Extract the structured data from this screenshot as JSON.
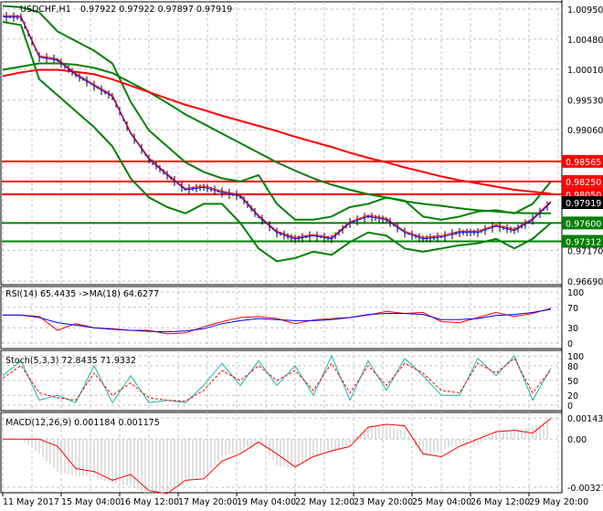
{
  "header": {
    "symbol": "USDCHF,H1",
    "ohlc": "0.97922 0.97922 0.97897 0.97919"
  },
  "colors": {
    "bull_level": "#008000",
    "bear_level": "#ff0000",
    "ma_slow": "#ff0000",
    "ma_green": "#008000",
    "rsi": "#ff0000",
    "rsi_ma": "#0000ff",
    "stoch_main": "#20b2aa",
    "stoch_signal": "#ff0000",
    "macd_hist": "#c0c0c0",
    "macd_signal": "#ff0000"
  },
  "chart_data": [
    {
      "type": "line",
      "name": "price",
      "price_ticks": [
        "1.00950",
        "1.00480",
        "1.00010",
        "0.99530",
        "0.99060",
        "0.97170",
        "0.96690"
      ],
      "ylim": [
        0.9669,
        1.0095
      ],
      "levels": [
        {
          "value": "0.98565",
          "color": "#ff0000"
        },
        {
          "value": "0.98250",
          "color": "#ff0000"
        },
        {
          "value": "0.98050",
          "color": "#ff0000"
        },
        {
          "value": "0.97600",
          "color": "#008000"
        },
        {
          "value": "0.97312",
          "color": "#008000"
        }
      ],
      "current": "0.97919",
      "close": [
        1.0083,
        1.0082,
        1.002,
        1.0015,
        0.9992,
        0.9975,
        0.9958,
        0.99,
        0.986,
        0.9835,
        0.9812,
        0.9816,
        0.9808,
        0.9802,
        0.977,
        0.9745,
        0.9735,
        0.974,
        0.9735,
        0.976,
        0.977,
        0.9765,
        0.9745,
        0.9735,
        0.9738,
        0.9745,
        0.9745,
        0.9755,
        0.9748,
        0.9765,
        0.9792
      ],
      "ma_red": [
        0.999,
        0.9996,
        1.0,
        1.0,
        0.9997,
        0.9993,
        0.9985,
        0.9975,
        0.9965,
        0.9955,
        0.9945,
        0.9937,
        0.9928,
        0.992,
        0.9912,
        0.9904,
        0.9895,
        0.9887,
        0.9879,
        0.987,
        0.9862,
        0.9855,
        0.9847,
        0.984,
        0.9833,
        0.9827,
        0.9822,
        0.9817,
        0.9812,
        0.9809,
        0.9806
      ],
      "ma_green": [
        1.0,
        1.0005,
        1.001,
        1.001,
        1.0008,
        1.0003,
        0.9995,
        0.998,
        0.9965,
        0.9948,
        0.993,
        0.9915,
        0.99,
        0.9885,
        0.987,
        0.9855,
        0.9842,
        0.983,
        0.982,
        0.9812,
        0.9805,
        0.98,
        0.9794,
        0.979,
        0.9787,
        0.9783,
        0.978,
        0.9778,
        0.9776,
        0.9775,
        0.9775
      ],
      "bb_upper": [
        1.01,
        1.0098,
        1.009,
        1.006,
        1.0045,
        1.003,
        1.001,
        0.995,
        0.9905,
        0.988,
        0.9855,
        0.984,
        0.983,
        0.9825,
        0.9835,
        0.979,
        0.9765,
        0.9765,
        0.977,
        0.9785,
        0.979,
        0.98,
        0.9795,
        0.977,
        0.9765,
        0.977,
        0.9778,
        0.978,
        0.9775,
        0.979,
        0.9825
      ],
      "bb_lower": [
        1.0075,
        1.007,
        0.9985,
        0.996,
        0.9935,
        0.991,
        0.988,
        0.983,
        0.98,
        0.9785,
        0.9775,
        0.979,
        0.979,
        0.976,
        0.972,
        0.97,
        0.9705,
        0.9715,
        0.971,
        0.973,
        0.9745,
        0.974,
        0.972,
        0.9715,
        0.972,
        0.9725,
        0.9728,
        0.9735,
        0.972,
        0.9735,
        0.976
      ]
    },
    {
      "type": "line",
      "name": "rsi",
      "label": "RSI(14) 65.4435  ->MA(18) 64.6277",
      "ticks": [
        "100",
        "70",
        "30",
        "0"
      ],
      "ylim": [
        0,
        100
      ],
      "rsi": [
        55,
        55,
        52,
        25,
        38,
        30,
        28,
        25,
        25,
        18,
        20,
        32,
        42,
        50,
        52,
        48,
        38,
        45,
        48,
        50,
        55,
        62,
        58,
        60,
        42,
        40,
        50,
        60,
        52,
        58,
        68
      ],
      "ma": [
        55,
        55,
        50,
        40,
        35,
        30,
        27,
        25,
        23,
        22,
        24,
        28,
        38,
        44,
        48,
        46,
        44,
        44,
        46,
        50,
        56,
        58,
        58,
        56,
        46,
        46,
        48,
        54,
        56,
        60,
        66
      ]
    },
    {
      "type": "line",
      "name": "stoch",
      "label": "Stoch(5,3,3) 72.8435 71.9332",
      "ticks": [
        "100",
        "80",
        "50",
        "20",
        "0"
      ],
      "ylim": [
        0,
        100
      ],
      "main": [
        60,
        90,
        10,
        20,
        5,
        80,
        5,
        60,
        5,
        10,
        5,
        40,
        85,
        40,
        90,
        40,
        80,
        20,
        100,
        10,
        90,
        30,
        95,
        60,
        20,
        20,
        95,
        60,
        100,
        10,
        75
      ],
      "signal": [
        55,
        80,
        25,
        15,
        10,
        65,
        20,
        45,
        15,
        10,
        8,
        30,
        70,
        50,
        80,
        50,
        70,
        30,
        85,
        25,
        80,
        40,
        85,
        65,
        30,
        25,
        85,
        65,
        95,
        25,
        72
      ]
    },
    {
      "type": "bar",
      "name": "macd",
      "label": "MACD(12,26,9) 0.001184 0.001175",
      "ticks": [
        "0.001434",
        "0.00",
        "-0.003272"
      ],
      "ylim": [
        -0.003272,
        0.001434
      ],
      "hist": [
        0,
        0,
        -0.001,
        -0.0022,
        -0.0025,
        -0.0026,
        -0.003,
        -0.0032,
        -0.0038,
        -0.0036,
        -0.0028,
        -0.0025,
        -0.0012,
        -0.0008,
        0.0,
        -0.0018,
        -0.002,
        -0.0012,
        -0.0008,
        -0.0003,
        0.0009,
        0.0009,
        0.0005,
        -0.0012,
        -0.0008,
        -0.0003,
        -0.0004,
        0.0005,
        0.0006,
        0.0008,
        0.0014
      ],
      "signal": [
        0,
        0,
        0,
        -0.0005,
        -0.002,
        -0.0022,
        -0.0028,
        -0.0024,
        -0.0035,
        -0.0037,
        -0.0028,
        -0.0027,
        -0.0015,
        -0.001,
        -0.0002,
        -0.001,
        -0.0019,
        -0.0012,
        -0.0008,
        -0.0005,
        0.0008,
        0.001,
        0.0009,
        -0.001,
        -0.0012,
        -0.0005,
        0.0,
        0.0005,
        0.0006,
        0.0004,
        0.0014
      ]
    },
    {
      "type": "axis",
      "name": "time",
      "labels": [
        "11 May 2017",
        "15 May 04:00",
        "16 May 12:00",
        "17 May 20:00",
        "19 May 04:00",
        "22 May 12:00",
        "23 May 20:00",
        "25 May 04:00",
        "26 May 12:00",
        "29 May 20:00"
      ]
    }
  ]
}
